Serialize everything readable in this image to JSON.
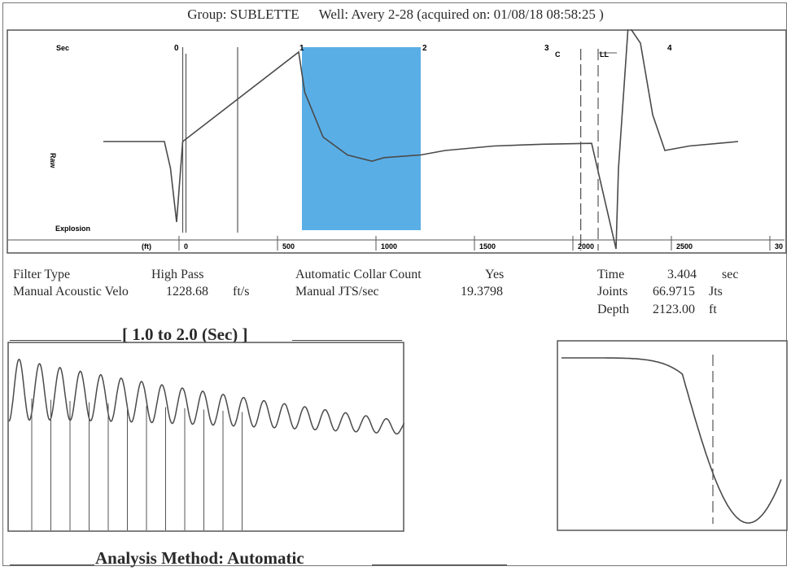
{
  "header": {
    "group": "Group: SUBLETTE",
    "well": "Well: Avery 2-28 (acquired on: 01/08/18 08:58:25 )"
  },
  "main_plot": {
    "top_labels": [
      "Sec",
      "0",
      "1",
      "2",
      "3",
      "4"
    ],
    "marker_labels": [
      "C",
      "LL"
    ],
    "y_label": "Raw",
    "explosion_label": "Explosion",
    "axis_unit": "(ft)",
    "x_tick_labels": [
      "0",
      "500",
      "1000",
      "1500",
      "2000",
      "2500",
      "30"
    ]
  },
  "params": {
    "filter_type_label": "Filter Type",
    "filter_type_value": "High Pass",
    "velocity_label": "Manual Acoustic Velo",
    "velocity_value": "1228.68",
    "velocity_unit": "ft/s",
    "collar_label": "Automatic Collar Count",
    "collar_value": "Yes",
    "jts_label": "Manual JTS/sec",
    "jts_value": "19.3798",
    "time_label": "Time",
    "time_value": "3.404",
    "time_unit": "sec",
    "joints_label": "Joints",
    "joints_value": "66.9715",
    "joints_unit": "Jts",
    "depth_label": "Depth",
    "depth_value": "2123.00",
    "depth_unit": "ft"
  },
  "zoom_title": "[ 1.0  to  2.0 (Sec) ]",
  "analysis_method": "Analysis Method:   Automatic",
  "colors": {
    "trace": "#4a4a4a",
    "highlight": "#5aaee6",
    "frame": "#555555"
  },
  "chart_data": [
    {
      "type": "line",
      "name": "acoustic_trace",
      "xlabel": "",
      "ylabel": "Raw",
      "x_axis": "time (sec)",
      "xlim": [
        -0.6,
        4.7
      ],
      "highlight_range_sec": [
        1.0,
        2.0
      ],
      "marker_time_sec": 3.404,
      "x": [
        -0.6,
        -0.1,
        -0.05,
        0.0,
        0.05,
        1.0,
        1.05,
        1.2,
        1.4,
        1.6,
        1.7,
        1.8,
        2.0,
        2.2,
        2.6,
        3.0,
        3.4,
        3.6,
        3.62,
        3.7,
        3.8,
        3.9,
        4.0,
        4.2,
        4.6
      ],
      "y": [
        0.0,
        0.0,
        -0.3,
        -0.9,
        0.0,
        1.0,
        0.55,
        0.05,
        -0.15,
        -0.22,
        -0.18,
        -0.17,
        -0.15,
        -0.1,
        -0.05,
        -0.03,
        -0.02,
        -1.2,
        -0.3,
        1.3,
        1.1,
        0.3,
        -0.1,
        -0.05,
        0.0
      ],
      "x_tick_labels_ft": [
        0,
        500,
        1000,
        1500,
        2000,
        2500
      ]
    },
    {
      "type": "line",
      "name": "zoom_1_to_2_sec",
      "xlim": [
        1.0,
        2.0
      ],
      "cycles": 19.38,
      "amplitude_start": 1.0,
      "amplitude_end": 0.2
    },
    {
      "type": "line",
      "name": "filter_response",
      "shape": "flat_then_drop_to_minimum"
    }
  ]
}
